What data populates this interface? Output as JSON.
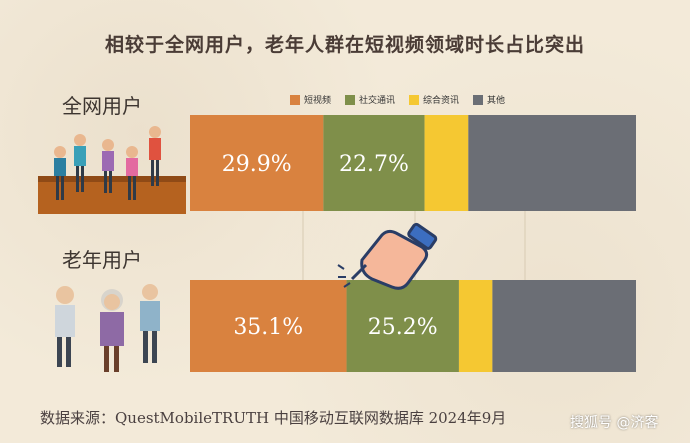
{
  "title": "相较于全网用户，老年人群在短视频领域时长占比突出",
  "footer": "数据来源：QuestMobileTRUTH 中国移动互联网数据库 2024年9月",
  "watermark": "搜狐号 @济客",
  "colors": {
    "短视频": "#d9823f",
    "社交通讯": "#7f8f4a",
    "综合资讯": "#f5c832",
    "其他": "#6b6e75"
  },
  "chart_data": {
    "type": "bar",
    "orientation": "horizontal",
    "stacked": true,
    "categories": [
      "全网用户",
      "老年用户"
    ],
    "series": [
      {
        "name": "短视频",
        "values": [
          29.9,
          35.1
        ],
        "labels": [
          "29.9%",
          "35.1%"
        ]
      },
      {
        "name": "社交通讯",
        "values": [
          22.7,
          25.2
        ],
        "labels": [
          "22.7%",
          "25.2%"
        ]
      },
      {
        "name": "综合资讯",
        "values": [
          9.8,
          7.5
        ],
        "labels": [
          "",
          ""
        ]
      },
      {
        "name": "其他",
        "values": [
          37.6,
          32.2
        ],
        "labels": [
          "",
          ""
        ]
      }
    ],
    "xlim": [
      0,
      100
    ],
    "legend_position": "top",
    "grid": true
  }
}
